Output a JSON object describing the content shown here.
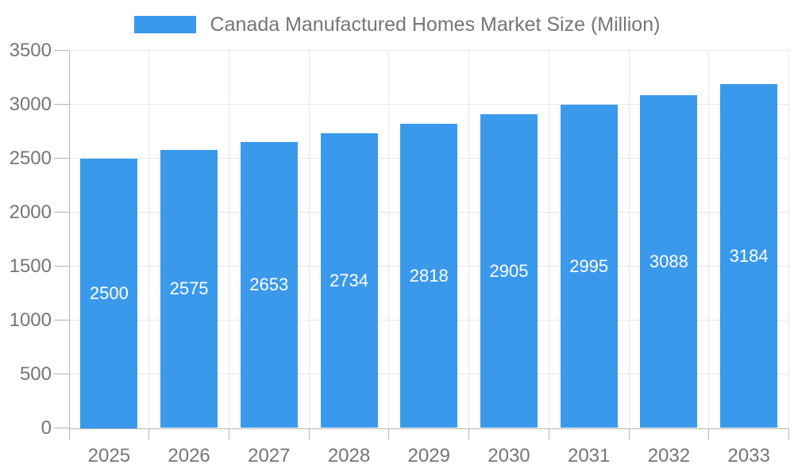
{
  "chart_data": {
    "type": "bar",
    "title": "Canada Manufactured Homes Market Size (Million)",
    "xlabel": "",
    "ylabel": "",
    "categories": [
      "2025",
      "2026",
      "2027",
      "2028",
      "2029",
      "2030",
      "2031",
      "2032",
      "2033"
    ],
    "series": [
      {
        "name": "Canada Manufactured Homes Market Size (Million)",
        "values": [
          2500,
          2575,
          2653,
          2734,
          2818,
          2905,
          2995,
          3088,
          3184
        ]
      }
    ],
    "bar_labels_visible": true,
    "ylim": [
      0,
      3500
    ],
    "yticks": [
      0,
      500,
      1000,
      1500,
      2000,
      2500,
      3000,
      3500
    ],
    "grid": true,
    "legend": {
      "position": "top",
      "entries": [
        "Canada Manufactured Homes Market Size (Million)"
      ]
    },
    "colors": {
      "bar": "#3b99ec",
      "bar_label": "#ffffff",
      "axis_text": "#757575",
      "axis_line": "#b6b6b6",
      "gridline": "#e8e8e8",
      "legend_text": "#757575",
      "background": "#ffffff"
    }
  }
}
